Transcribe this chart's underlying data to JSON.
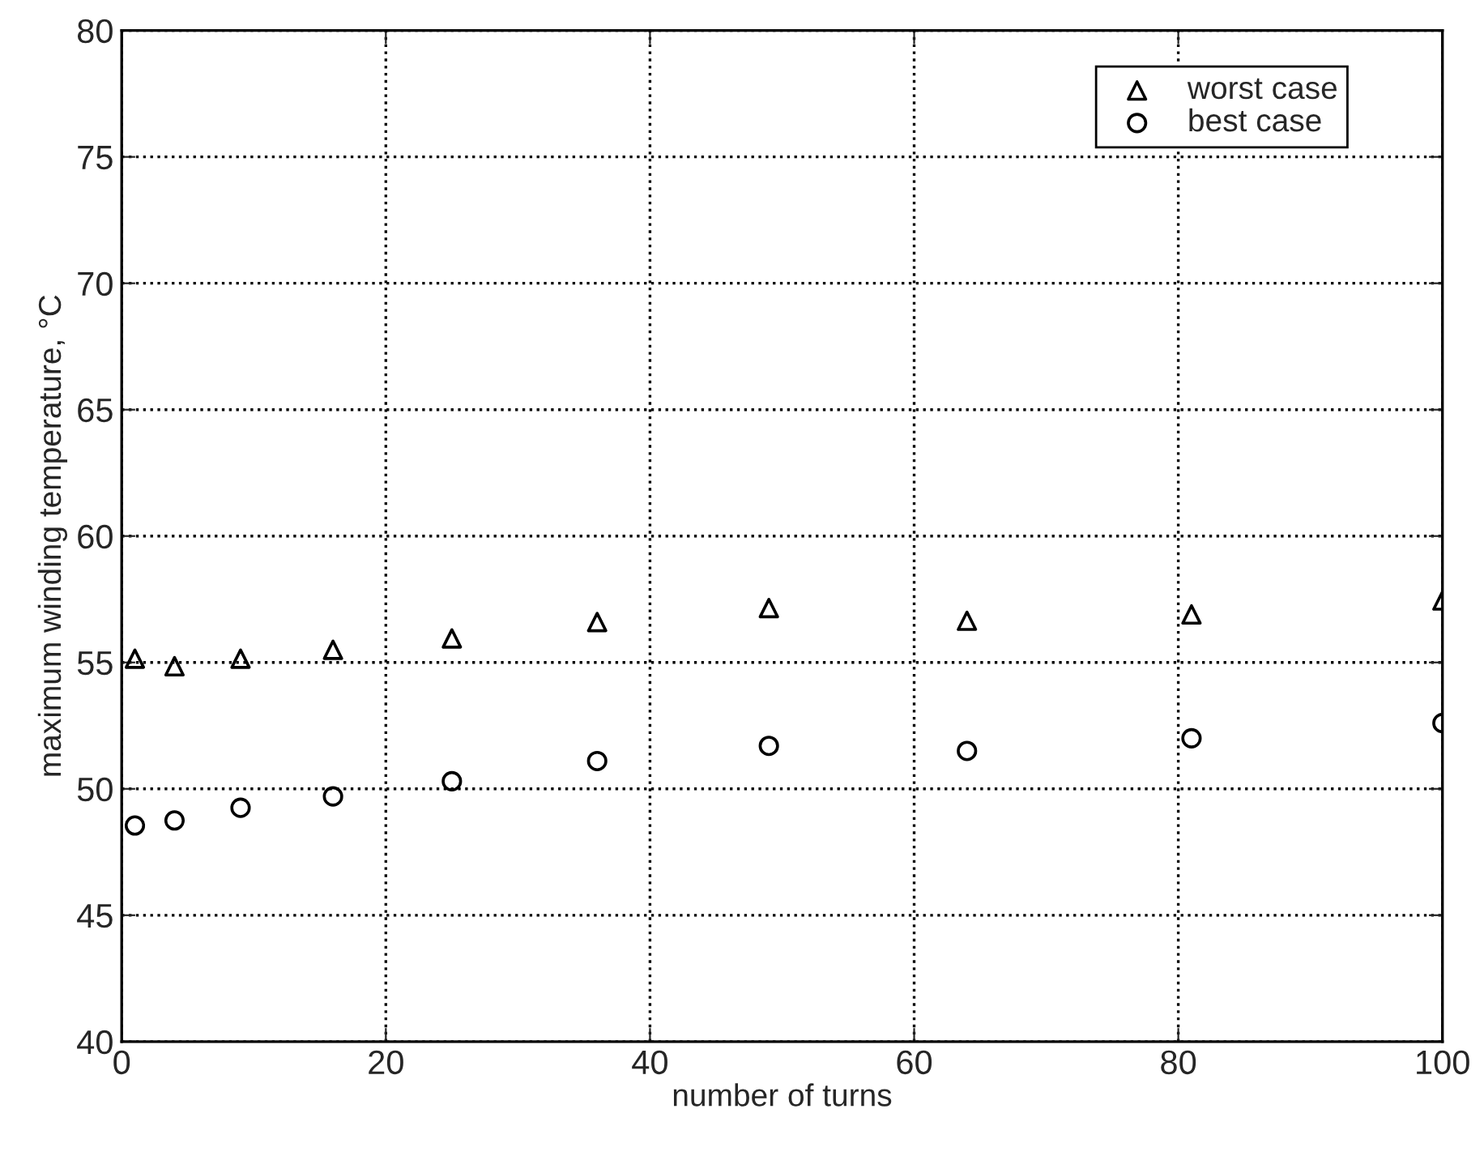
{
  "chart_data": {
    "type": "scatter",
    "xlabel": "number of turns",
    "ylabel": "maximum winding temperature, °C",
    "x": [
      1,
      4,
      9,
      16,
      25,
      36,
      49,
      64,
      81,
      100
    ],
    "series": [
      {
        "name": "worst case",
        "color": "#000000",
        "marker": "triangle",
        "values": [
          55.15,
          54.85,
          55.15,
          55.5,
          55.95,
          56.6,
          57.15,
          56.65,
          56.9,
          57.45
        ]
      },
      {
        "name": "best case",
        "color": "#000000",
        "marker": "circle",
        "values": [
          48.55,
          48.75,
          49.25,
          49.7,
          50.3,
          51.1,
          51.7,
          51.5,
          52.0,
          52.6
        ]
      }
    ],
    "xlim": [
      0,
      100
    ],
    "xticks": [
      0,
      20,
      40,
      60,
      80,
      100
    ],
    "ylim": [
      40,
      80
    ],
    "yticks": [
      40,
      45,
      50,
      55,
      60,
      65,
      70,
      75,
      80
    ],
    "grid": true,
    "legend": "top right"
  }
}
